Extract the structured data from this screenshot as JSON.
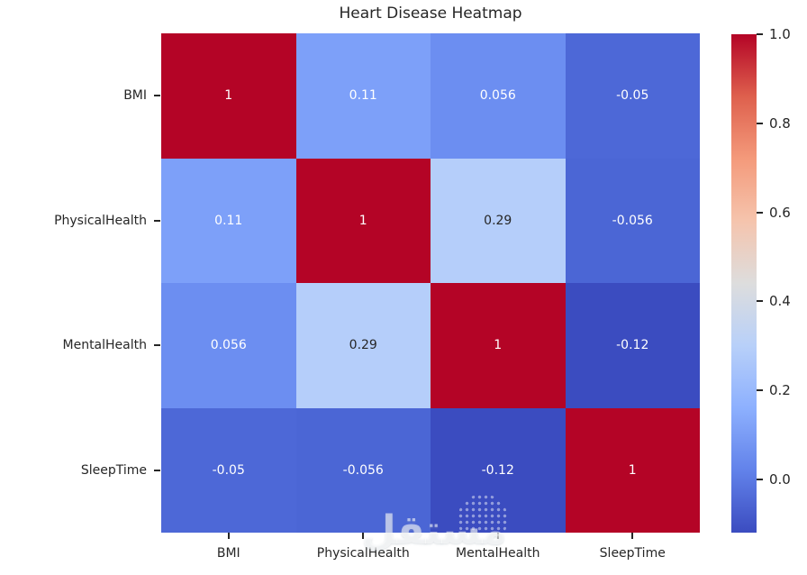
{
  "watermark": "مستقل",
  "chart_data": {
    "type": "heatmap",
    "title": "Heart Disease Heatmap",
    "categories": [
      "BMI",
      "PhysicalHealth",
      "MentalHealth",
      "SleepTime"
    ],
    "matrix": [
      [
        1,
        0.11,
        0.056,
        -0.05
      ],
      [
        0.11,
        1,
        0.29,
        -0.056
      ],
      [
        0.056,
        0.29,
        1,
        -0.12
      ],
      [
        -0.05,
        -0.056,
        -0.12,
        1
      ]
    ],
    "cell_labels": [
      [
        "1",
        "0.11",
        "0.056",
        "-0.05"
      ],
      [
        "0.11",
        "1",
        "0.29",
        "-0.056"
      ],
      [
        "0.056",
        "0.29",
        "1",
        "-0.12"
      ],
      [
        "-0.05",
        "-0.056",
        "-0.12",
        "1"
      ]
    ],
    "cell_colors": [
      [
        "#B40426",
        "#7DA0F9",
        "#6C8EF1",
        "#4D68D7"
      ],
      [
        "#7DA0F9",
        "#B40426",
        "#B5CEFA",
        "#4B66D5"
      ],
      [
        "#6C8EF1",
        "#B5CEFA",
        "#B40426",
        "#3B4CC0"
      ],
      [
        "#4D68D7",
        "#4B66D5",
        "#3B4CC0",
        "#B40426"
      ]
    ],
    "cell_text_colors": [
      [
        "light",
        "light",
        "light",
        "light"
      ],
      [
        "light",
        "light",
        "dark",
        "light"
      ],
      [
        "light",
        "dark",
        "light",
        "light"
      ],
      [
        "light",
        "light",
        "light",
        "light"
      ]
    ],
    "annotation_light_color": "#ffffff",
    "annotation_dark_color": "#262626",
    "colormap": "coolwarm",
    "vmin": -0.12,
    "vmax": 1.0,
    "grid_on": false,
    "legend_position": "right-colorbar",
    "colorbar": {
      "ticks": [
        "1.0",
        "0.8",
        "0.6",
        "0.4",
        "0.2",
        "0.0"
      ],
      "gradient_top_to_bottom": [
        "#B40426",
        "#DE604D",
        "#F49A7B",
        "#F5C4AD",
        "#DDDDDD",
        "#B8D0F9",
        "#8DB0FE",
        "#6282EA",
        "#3B4CC0"
      ]
    }
  }
}
